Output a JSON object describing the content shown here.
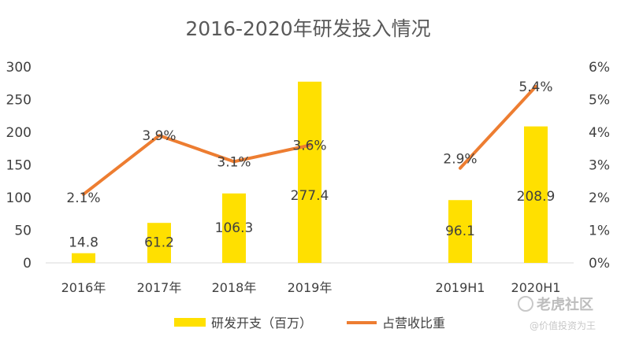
{
  "chart_data": {
    "type": "bar",
    "title": "2016-2020年研发投入情况",
    "categories": [
      "2016年",
      "2017年",
      "2018年",
      "2019年",
      "2019H1",
      "2020H1"
    ],
    "series": [
      {
        "name": "研发开支（百万）",
        "type": "bar",
        "axis": "left",
        "color": "#FFE000",
        "values": [
          14.8,
          61.2,
          106.3,
          277.4,
          96.1,
          208.9
        ],
        "labels": [
          "14.8",
          "61.2",
          "106.3",
          "277.4",
          "96.1",
          "208.9"
        ]
      },
      {
        "name": "占营收比重",
        "type": "line",
        "axis": "right",
        "color": "#ED7D31",
        "segments": [
          [
            0,
            1,
            2,
            3
          ],
          [
            4,
            5
          ]
        ],
        "values": [
          2.1,
          3.9,
          3.1,
          3.6,
          2.9,
          5.4
        ],
        "labels": [
          "2.1%",
          "3.9%",
          "3.1%",
          "3.6%",
          "2.9%",
          "5.4%"
        ]
      }
    ],
    "y_left": {
      "ylim": [
        0,
        300
      ],
      "ticks": [
        "0",
        "50",
        "100",
        "150",
        "200",
        "250",
        "300"
      ]
    },
    "y_right": {
      "ylim": [
        0,
        6
      ],
      "ticks": [
        "0%",
        "1%",
        "2%",
        "3%",
        "4%",
        "5%",
        "6%"
      ]
    },
    "grid": false,
    "legend_position": "bottom"
  },
  "watermark": {
    "brand": "老虎社区",
    "handle": "@价值投资为王"
  }
}
